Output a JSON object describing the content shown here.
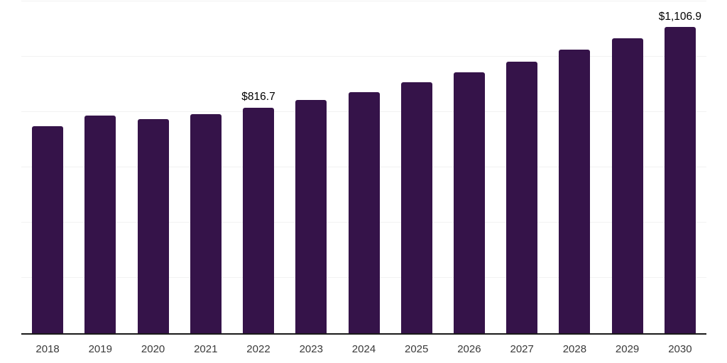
{
  "chart_data": {
    "type": "bar",
    "title": "",
    "xlabel": "",
    "ylabel": "",
    "categories": [
      "2018",
      "2019",
      "2020",
      "2021",
      "2022",
      "2023",
      "2024",
      "2025",
      "2026",
      "2027",
      "2028",
      "2029",
      "2030"
    ],
    "values": [
      750,
      787,
      774,
      793,
      816.7,
      843,
      872,
      908,
      944,
      983,
      1025,
      1068,
      1106.9
    ],
    "point_labels": [
      "",
      "",
      "",
      "",
      "$816.7",
      "",
      "",
      "",
      "",
      "",
      "",
      "",
      "$1,106.9"
    ],
    "ylim": [
      0,
      1200
    ],
    "grid_step": 200,
    "grid": true,
    "legend": false,
    "colors": {
      "bar": "#351349",
      "gridline": "#f2f2f2",
      "axis_line": "#1a1a1a",
      "point_label": "#000000",
      "tick_label": "#3a3a3a",
      "background": "#ffffff"
    }
  }
}
